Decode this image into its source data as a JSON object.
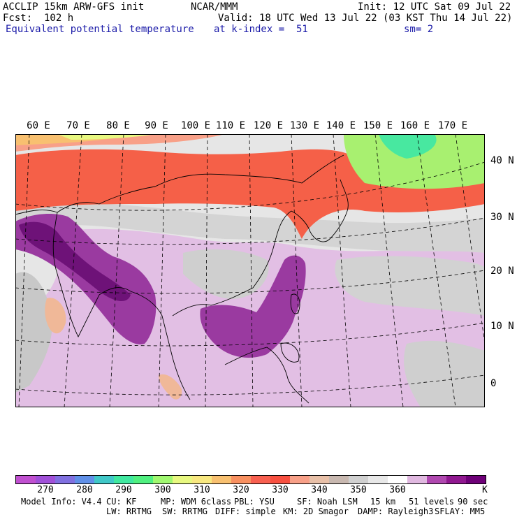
{
  "header": {
    "model": "ACCLIP 15km ARW-GFS init",
    "org": "NCAR/MMM",
    "init": "Init: 12 UTC Sat 09 Jul 22",
    "fcst": "Fcst:  102 h",
    "valid": "Valid: 18 UTC Wed 13 Jul 22 (03 KST Thu 14 Jul 22)",
    "field": "Equivalent potential temperature",
    "level": "at k-index =  51",
    "smooth": "sm= 2"
  },
  "map": {
    "lon_labels": [
      "60 E",
      "70 E",
      "80 E",
      "90 E",
      "100 E",
      "110 E",
      "120 E",
      "130 E",
      "140 E",
      "150 E",
      "160 E",
      "170 E"
    ],
    "lat_labels": [
      "40 N",
      "30 N",
      "20 N",
      "10 N",
      "0"
    ],
    "colors": {
      "land_border": "#000000",
      "grid": "#000000"
    }
  },
  "colorbar": {
    "colors": [
      "#c050d0",
      "#a050d8",
      "#8070e0",
      "#6090e8",
      "#40c8c8",
      "#40e8a0",
      "#50f080",
      "#a0f870",
      "#e8f880",
      "#f8e880",
      "#f8c070",
      "#f89060",
      "#f86050",
      "#f85040",
      "#f8a088",
      "#e8c0a8",
      "#c8b8b0",
      "#d0d0d0",
      "#e8e8e8",
      "#ffffff",
      "#e0b8e0",
      "#b048b0",
      "#901890",
      "#6e0078"
    ],
    "tick_labels": [
      "270",
      "280",
      "290",
      "300",
      "310",
      "320",
      "330",
      "340",
      "350",
      "360"
    ],
    "unit": "K"
  },
  "footer": {
    "line1": [
      "Model Info: V4.4",
      "CU: KF",
      "MP: WDM 6class",
      "PBL: YSU",
      "SF: Noah LSM",
      "15 km",
      "51 levels",
      "90 sec"
    ],
    "line2": [
      "LW: RRTMG",
      "SW: RRTMG",
      "DIFF: simple",
      "KM: 2D Smagor",
      "DAMP: Rayleigh3",
      "SFLAY: MM5"
    ]
  }
}
